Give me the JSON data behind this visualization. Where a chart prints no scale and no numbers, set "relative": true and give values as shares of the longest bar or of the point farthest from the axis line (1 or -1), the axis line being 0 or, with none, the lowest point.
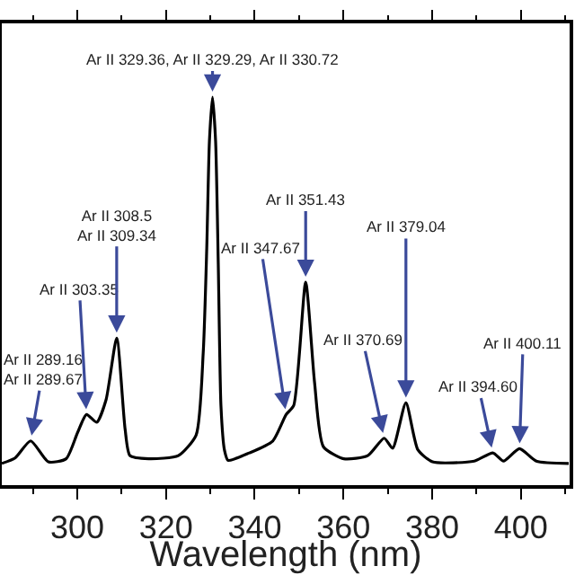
{
  "chart_data": {
    "type": "line",
    "relative": true,
    "xlabel": "Wavelength (nm)",
    "xlim": [
      283,
      411
    ],
    "xticks": [
      300,
      320,
      340,
      360,
      380,
      400
    ],
    "tick_labels": "x",
    "marker": "none",
    "line_style": "solid",
    "series": [
      {
        "color": "#000000",
        "x": [
          283.0,
          286.0,
          289.5,
          293.5,
          297.5,
          300.1,
          302.1,
          304.4,
          306.5,
          308.9,
          310.8,
          311.9,
          316.1,
          322.8,
          326.8,
          328.4,
          329.2,
          329.8,
          330.5,
          331.2,
          331.8,
          332.4,
          333.2,
          334.0,
          338.8,
          344.1,
          347.1,
          348.8,
          351.5,
          353.5,
          355.5,
          360.1,
          365.5,
          369.2,
          371.1,
          374.1,
          376.8,
          380.1,
          389.5,
          393.7,
          396.1,
          399.7,
          403.5,
          410.8
        ],
        "values": [
          0.056,
          0.07,
          0.114,
          0.06,
          0.068,
          0.136,
          0.182,
          0.162,
          0.22,
          0.379,
          0.144,
          0.076,
          0.068,
          0.076,
          0.129,
          0.34,
          0.61,
          0.886,
          1.0,
          0.886,
          0.568,
          0.205,
          0.09,
          0.064,
          0.083,
          0.114,
          0.182,
          0.205,
          0.523,
          0.265,
          0.099,
          0.068,
          0.076,
          0.121,
          0.095,
          0.212,
          0.091,
          0.06,
          0.062,
          0.083,
          0.062,
          0.094,
          0.062,
          0.056
        ]
      }
    ],
    "annotations": [
      {
        "text": "Ar II 289.16\nAr II 289.67",
        "x": 289.5,
        "y": 0.114
      },
      {
        "text": "Ar II 303.35",
        "x": 302.1,
        "y": 0.182
      },
      {
        "text": "Ar II 308.5\nAr II 309.34",
        "x": 308.9,
        "y": 0.379
      },
      {
        "text": "Ar II 329.36, Ar II 329.29, Ar II 330.72",
        "x": 330.5,
        "y": 1.0
      },
      {
        "text": "Ar II 347.67",
        "x": 347.1,
        "y": 0.182
      },
      {
        "text": "Ar II 351.43",
        "x": 351.5,
        "y": 0.523
      },
      {
        "text": "Ar II 379.04",
        "x": 374.1,
        "y": 0.212
      },
      {
        "text": "Ar II 370.69",
        "x": 369.2,
        "y": 0.121
      },
      {
        "text": "Ar II 394.60",
        "x": 393.7,
        "y": 0.083
      },
      {
        "text": "Ar II 400.11",
        "x": 399.7,
        "y": 0.094
      }
    ]
  }
}
